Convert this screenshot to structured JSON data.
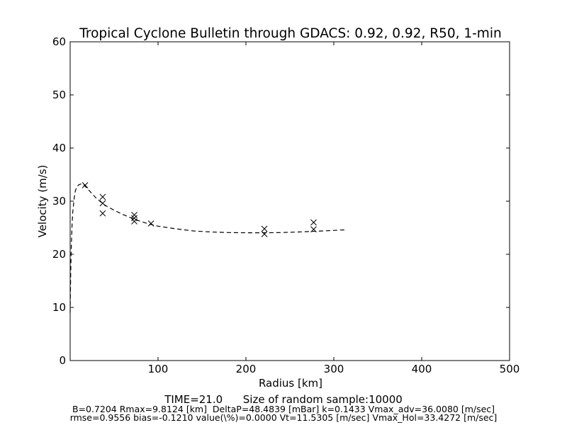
{
  "chart_data": {
    "type": "scatter",
    "title": "Tropical Cyclone Bulletin through GDACS: 0.92, 0.92, R50, 1-min",
    "xlabel": "Radius [km]",
    "ylabel": "Velocity (m/s)",
    "xlim": [
      0,
      500
    ],
    "ylim": [
      0,
      60
    ],
    "x_ticks": [
      100,
      200,
      300,
      400,
      500
    ],
    "y_ticks": [
      0,
      10,
      20,
      30,
      40,
      50,
      60
    ],
    "grid": false,
    "series": [
      {
        "style": "x-markers",
        "color": "#000000",
        "points": [
          [
            17,
            33.0
          ],
          [
            37,
            30.8
          ],
          [
            37,
            29.6
          ],
          [
            37,
            27.7
          ],
          [
            73,
            27.4
          ],
          [
            73,
            26.8
          ],
          [
            73,
            26.2
          ],
          [
            92,
            25.8
          ],
          [
            221,
            24.8
          ],
          [
            221,
            23.8
          ],
          [
            277,
            26.0
          ],
          [
            277,
            24.7
          ]
        ]
      },
      {
        "style": "dashed-line",
        "color": "#000000",
        "points": [
          [
            0,
            9.0
          ],
          [
            0.6,
            16.0
          ],
          [
            1.2,
            21.0
          ],
          [
            2,
            25.0
          ],
          [
            3,
            28.0
          ],
          [
            4.5,
            30.5
          ],
          [
            6,
            32.0
          ],
          [
            8,
            32.8
          ],
          [
            10,
            33.1
          ],
          [
            13,
            33.3
          ],
          [
            16,
            33.0
          ],
          [
            20,
            32.3
          ],
          [
            30,
            30.5
          ],
          [
            40,
            29.2
          ],
          [
            50,
            28.3
          ],
          [
            60,
            27.5
          ],
          [
            70,
            26.8
          ],
          [
            80,
            26.2
          ],
          [
            90,
            25.7
          ],
          [
            100,
            25.3
          ],
          [
            120,
            24.8
          ],
          [
            140,
            24.4
          ],
          [
            160,
            24.2
          ],
          [
            180,
            24.1
          ],
          [
            200,
            24.05
          ],
          [
            220,
            24.05
          ],
          [
            240,
            24.1
          ],
          [
            260,
            24.2
          ],
          [
            280,
            24.35
          ],
          [
            300,
            24.5
          ],
          [
            312,
            24.6
          ]
        ]
      }
    ]
  },
  "footer": {
    "main": "TIME=21.0      Size of random sample:10000",
    "line1": "B=0.7204 Rmax=9.8124 [km]  DeltaP=48.4839 [mBar] k=0.1433 Vmax_adv=36.0080 [m/sec]",
    "line2": "rmse=0.9556 bias=-0.1210 value(\\%)=0.0000 Vt=11.5305 [m/sec] Vmax_Hol=33.4272 [m/sec]"
  }
}
